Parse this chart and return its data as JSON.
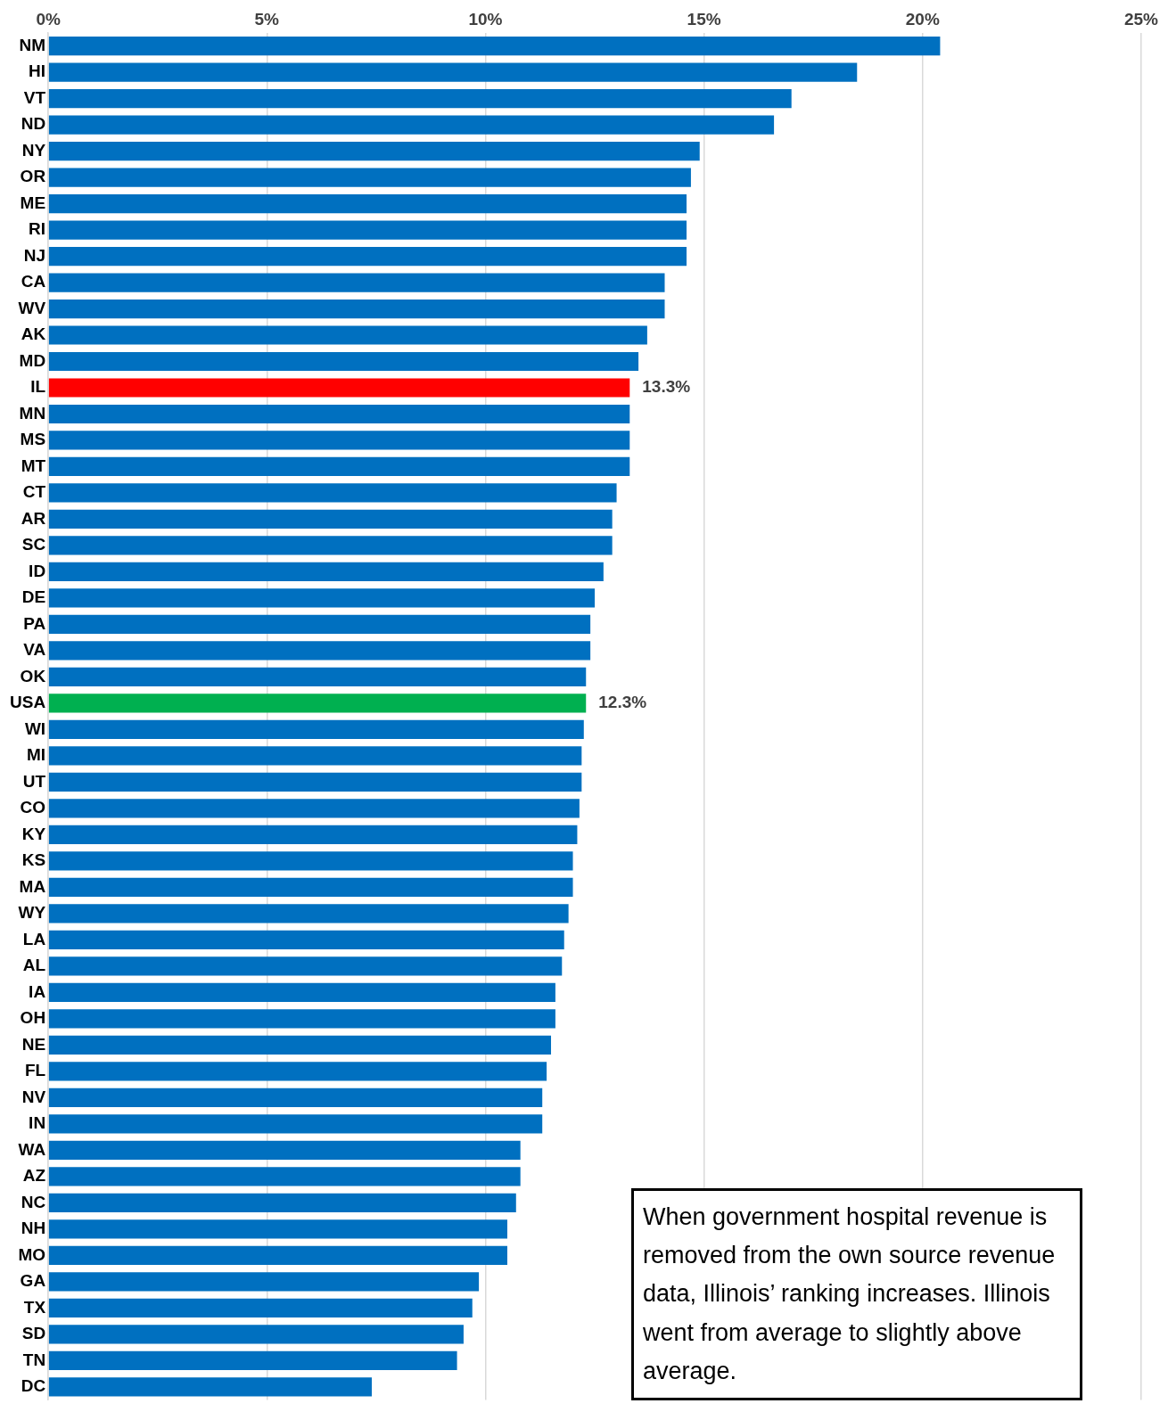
{
  "chart_data": {
    "type": "bar",
    "orientation": "horizontal",
    "categories": [
      "NM",
      "HI",
      "VT",
      "ND",
      "NY",
      "OR",
      "ME",
      "RI",
      "NJ",
      "CA",
      "WV",
      "AK",
      "MD",
      "IL",
      "MN",
      "MS",
      "MT",
      "CT",
      "AR",
      "SC",
      "ID",
      "DE",
      "PA",
      "VA",
      "OK",
      "USA",
      "WI",
      "MI",
      "UT",
      "CO",
      "KY",
      "KS",
      "MA",
      "WY",
      "LA",
      "AL",
      "IA",
      "OH",
      "NE",
      "FL",
      "NV",
      "IN",
      "WA",
      "AZ",
      "NC",
      "NH",
      "MO",
      "GA",
      "TX",
      "SD",
      "TN",
      "DC"
    ],
    "values": [
      20.4,
      18.5,
      17.0,
      16.6,
      14.9,
      14.7,
      14.6,
      14.6,
      14.6,
      14.1,
      14.1,
      13.7,
      13.5,
      13.3,
      13.3,
      13.3,
      13.3,
      13.0,
      12.9,
      12.9,
      12.7,
      12.5,
      12.4,
      12.4,
      12.3,
      12.3,
      12.25,
      12.2,
      12.2,
      12.15,
      12.1,
      12.0,
      12.0,
      11.9,
      11.8,
      11.75,
      11.6,
      11.6,
      11.5,
      11.4,
      11.3,
      11.3,
      10.8,
      10.8,
      10.7,
      10.5,
      10.5,
      9.85,
      9.7,
      9.5,
      9.35,
      7.4
    ],
    "colors": [
      "#0070c0",
      "#0070c0",
      "#0070c0",
      "#0070c0",
      "#0070c0",
      "#0070c0",
      "#0070c0",
      "#0070c0",
      "#0070c0",
      "#0070c0",
      "#0070c0",
      "#0070c0",
      "#0070c0",
      "#ff0000",
      "#0070c0",
      "#0070c0",
      "#0070c0",
      "#0070c0",
      "#0070c0",
      "#0070c0",
      "#0070c0",
      "#0070c0",
      "#0070c0",
      "#0070c0",
      "#0070c0",
      "#00b050",
      "#0070c0",
      "#0070c0",
      "#0070c0",
      "#0070c0",
      "#0070c0",
      "#0070c0",
      "#0070c0",
      "#0070c0",
      "#0070c0",
      "#0070c0",
      "#0070c0",
      "#0070c0",
      "#0070c0",
      "#0070c0",
      "#0070c0",
      "#0070c0",
      "#0070c0",
      "#0070c0",
      "#0070c0",
      "#0070c0",
      "#0070c0",
      "#0070c0",
      "#0070c0",
      "#0070c0",
      "#0070c0",
      "#0070c0"
    ],
    "value_labels": [
      null,
      null,
      null,
      null,
      null,
      null,
      null,
      null,
      null,
      null,
      null,
      null,
      null,
      "13.3%",
      null,
      null,
      null,
      null,
      null,
      null,
      null,
      null,
      null,
      null,
      null,
      "12.3%",
      null,
      null,
      null,
      null,
      null,
      null,
      null,
      null,
      null,
      null,
      null,
      null,
      null,
      null,
      null,
      null,
      null,
      null,
      null,
      null,
      null,
      null,
      null,
      null,
      null,
      null
    ],
    "xlim": [
      0,
      25
    ],
    "xticks": [
      {
        "value": 0,
        "label": "0%"
      },
      {
        "value": 5,
        "label": "5%"
      },
      {
        "value": 10,
        "label": "10%"
      },
      {
        "value": 15,
        "label": "15%"
      },
      {
        "value": 20,
        "label": "20%"
      },
      {
        "value": 25,
        "label": "25%"
      }
    ],
    "grid": "x",
    "legend": false,
    "annotations": [
      "When government hospital revenue is removed from the own source revenue  data, Illinois’ ranking increases. Illinois went from average to slightly above average."
    ]
  }
}
